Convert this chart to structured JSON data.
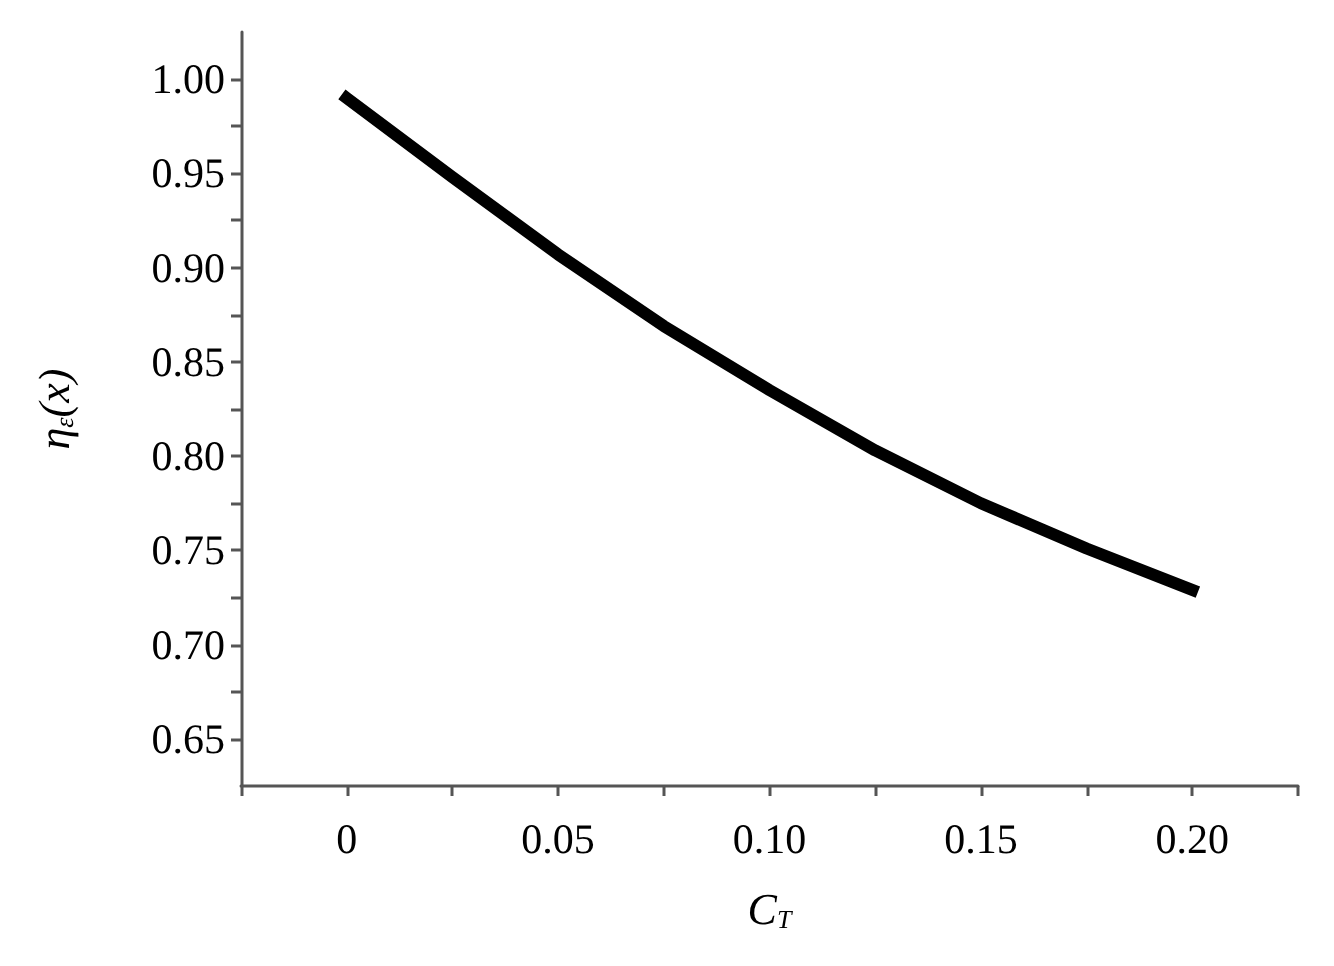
{
  "chart_data": {
    "type": "line",
    "xlabel": "C$_{T}$",
    "ylabel": "η$_{ε}$(x)",
    "x": [
      0,
      0.025,
      0.05,
      0.075,
      0.1,
      0.125,
      0.15,
      0.175,
      0.2
    ],
    "series": [
      {
        "color": "#000000",
        "values": [
          0.99,
          0.948,
          0.907,
          0.869,
          0.835,
          0.803,
          0.775,
          0.751,
          0.729
        ]
      }
    ],
    "xlim": [
      -0.025,
      0.225
    ],
    "xticks": [
      {
        "value": -0.025,
        "label": null
      },
      0,
      {
        "value": 0.025,
        "label": null
      },
      0.05,
      {
        "value": 0.075,
        "label": null
      },
      {
        "value": 0.1,
        "label": "0.10"
      },
      {
        "value": 0.125,
        "label": null
      },
      0.15,
      {
        "value": 0.175,
        "label": null
      },
      {
        "value": 0.2,
        "label": "0.20"
      },
      {
        "value": 0.225,
        "label": null
      }
    ],
    "ylim": [
      0.625,
      1.025
    ],
    "yticks": [
      0.65,
      {
        "value": 0.675,
        "label": null
      },
      {
        "value": 0.7,
        "label": "0.70"
      },
      {
        "value": 0.725,
        "label": null
      },
      0.75,
      {
        "value": 0.775,
        "label": null
      },
      {
        "value": 0.8,
        "label": "0.80"
      },
      {
        "value": 0.825,
        "label": null
      },
      0.85,
      {
        "value": 0.875,
        "label": null
      },
      {
        "value": 0.9,
        "label": "0.90"
      },
      {
        "value": 0.925,
        "label": null
      },
      0.95,
      {
        "value": 0.975,
        "label": null
      },
      {
        "value": 1,
        "label": "1.00"
      }
    ],
    "grid": false,
    "marker": "none",
    "line_style": "solid"
  }
}
